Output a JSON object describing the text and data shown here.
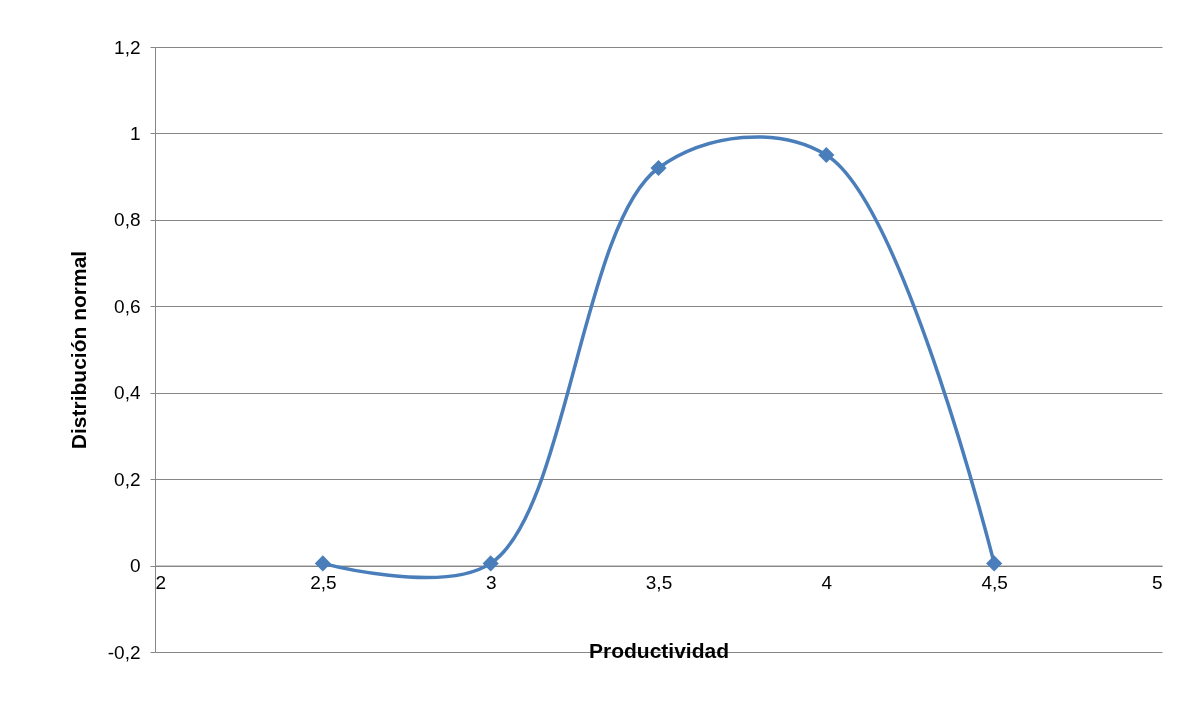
{
  "chart_data": {
    "type": "line",
    "xlabel": "Productividad",
    "ylabel": "Distribución normal",
    "x": [
      2.5,
      3,
      3.5,
      4,
      4.5
    ],
    "series": [
      {
        "color": "#4a7ebb",
        "values": [
          0.005,
          0.005,
          0.92,
          0.95,
          0.005
        ]
      }
    ],
    "xlim": [
      2,
      5
    ],
    "xticks": [
      2,
      {
        "value": 2.5,
        "label": "2,5"
      },
      3,
      {
        "value": 3.5,
        "label": "3,5"
      },
      4,
      {
        "value": 4.5,
        "label": "4,5"
      },
      5
    ],
    "ylim": [
      -0.2,
      1.2
    ],
    "yticks": [
      {
        "value": -0.2,
        "label": "-0,2"
      },
      0,
      {
        "value": 0.2,
        "label": "0,2"
      },
      {
        "value": 0.4,
        "label": "0,4"
      },
      {
        "value": 0.6,
        "label": "0,6"
      },
      {
        "value": 0.8,
        "label": "0,8"
      },
      1,
      {
        "value": 1.2,
        "label": "1,2"
      }
    ],
    "grid": "y",
    "marker": "diamond",
    "line_style": "solid"
  }
}
